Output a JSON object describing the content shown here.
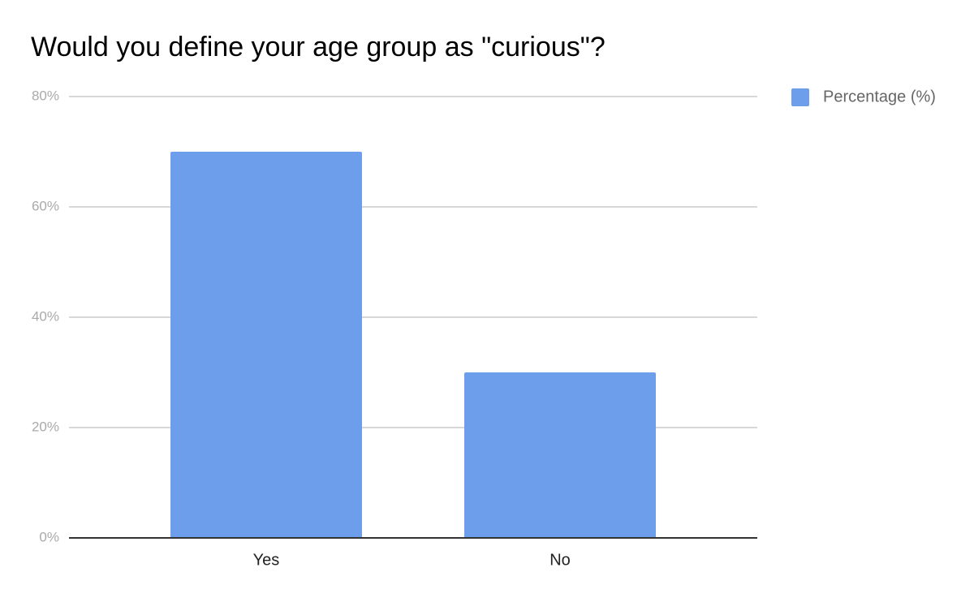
{
  "chart_data": {
    "type": "bar",
    "title": "Would you define your age group as \"curious\"?",
    "categories": [
      "Yes",
      "No"
    ],
    "series": [
      {
        "name": "Percentage (%)",
        "color": "#6d9eeb",
        "values": [
          70,
          30
        ]
      }
    ],
    "ylim": [
      0,
      80
    ],
    "yticks": [
      {
        "value": 0,
        "label": "0%"
      },
      {
        "value": 20,
        "label": "20%"
      },
      {
        "value": 40,
        "label": "40%"
      },
      {
        "value": 60,
        "label": "60%"
      },
      {
        "value": 80,
        "label": "80%"
      }
    ],
    "grid": true,
    "legend_position": "right"
  }
}
